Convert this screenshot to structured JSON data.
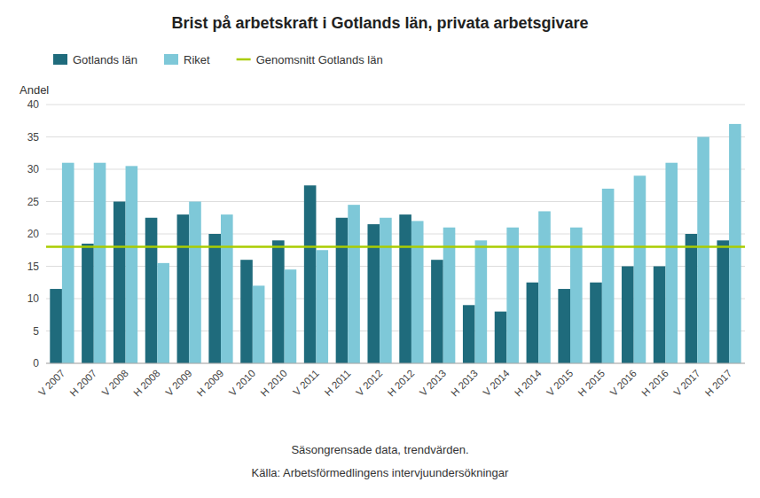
{
  "chart_data": {
    "type": "bar",
    "title": "Brist på arbetskraft i Gotlands län, privata arbetsgivare",
    "ylabel": "Andel",
    "annotations": [
      "Säsongrensade data, trendvärden.",
      "Källa: Arbetsförmedlingens  intervjuundersökningar"
    ],
    "categories": [
      "V 2007",
      "H 2007",
      "V 2008",
      "H 2008",
      "V 2009",
      "H 2009",
      "V 2010",
      "H 2010",
      "V 2011",
      "H 2011",
      "V 2012",
      "H 2012",
      "V 2013",
      "H 2013",
      "V 2014",
      "H 2014",
      "V 2015",
      "H 2015",
      "V 2016",
      "H 2016",
      "V 2017",
      "H 2017"
    ],
    "series": [
      {
        "name": "Gotlands län",
        "color": "#1F6B7C",
        "values": [
          11.5,
          18.5,
          25,
          22.5,
          23,
          20,
          16,
          19,
          27.5,
          22.5,
          21.5,
          23,
          16,
          9,
          8,
          12.5,
          11.5,
          12.5,
          15,
          15,
          20,
          19
        ]
      },
      {
        "name": "Riket",
        "color": "#7EC8D8",
        "values": [
          31,
          31,
          30.5,
          15.5,
          25,
          23,
          12,
          14.5,
          17.5,
          24.5,
          22.5,
          22,
          21,
          19,
          21,
          23.5,
          21,
          27,
          29,
          31,
          35,
          37
        ]
      }
    ],
    "reference_line": {
      "name": "Genomsnitt Gotlands län",
      "value": 18,
      "color": "#AACC00"
    },
    "ylim": [
      0,
      40
    ],
    "yticks": [
      0,
      5,
      10,
      15,
      20,
      25,
      30,
      35,
      40
    ],
    "grid": true,
    "legend": "top"
  }
}
